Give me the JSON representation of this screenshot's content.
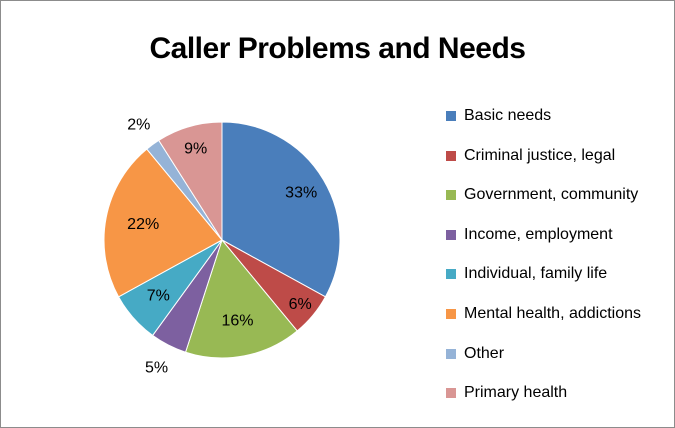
{
  "chart_data": {
    "type": "pie",
    "title": "Caller Problems and Needs",
    "categories": [
      "Basic needs",
      "Criminal justice, legal",
      "Government, community",
      "Income, employment",
      "Individual, family life",
      "Mental health, addictions",
      "Other",
      "Primary health"
    ],
    "values": [
      33,
      6,
      16,
      5,
      7,
      22,
      2,
      9
    ],
    "labels": [
      "33%",
      "6%",
      "16%",
      "5%",
      "7%",
      "22%",
      "2%",
      "9%"
    ],
    "colors": [
      "#4A7EBB",
      "#BE4B48",
      "#98B954",
      "#7D60A0",
      "#46AAC5",
      "#F79646",
      "#95B3D7",
      "#D99694"
    ],
    "legend": "right"
  }
}
